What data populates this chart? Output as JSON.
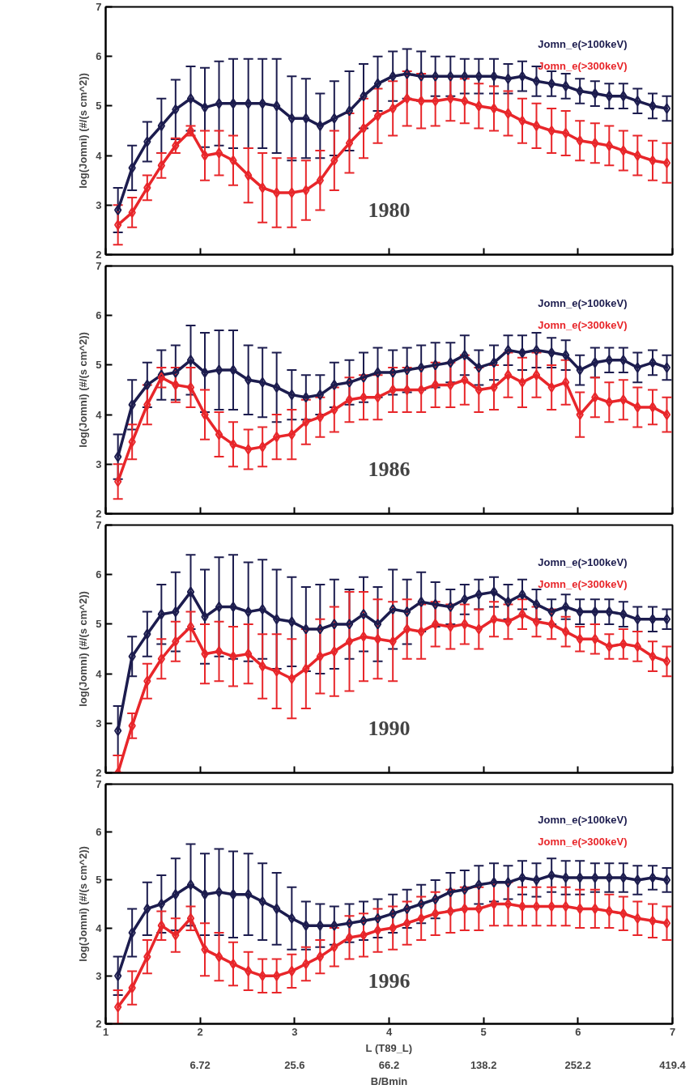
{
  "chart_data": [
    {
      "type": "line",
      "xlim": [
        1,
        7
      ],
      "ylim": [
        2,
        7
      ],
      "xticks": [
        1,
        2,
        3,
        4,
        5,
        6,
        7
      ],
      "yticks": [
        2,
        3,
        4,
        5,
        6,
        7
      ],
      "tick_labels": "y",
      "legend": "top right",
      "marker": "diamond",
      "line_style": "solid",
      "ylabel": "log(Jomni) (#/(s cm^2))",
      "title": "1980",
      "x": [
        1.13,
        1.28,
        1.44,
        1.59,
        1.74,
        1.9,
        2.05,
        2.2,
        2.35,
        2.51,
        2.66,
        2.81,
        2.97,
        3.12,
        3.27,
        3.42,
        3.58,
        3.73,
        3.88,
        4.04,
        4.19,
        4.34,
        4.49,
        4.65,
        4.8,
        4.95,
        5.11,
        5.26,
        5.41,
        5.56,
        5.72,
        5.87,
        6.02,
        6.18,
        6.33,
        6.48,
        6.63,
        6.79,
        6.94
      ],
      "series": [
        {
          "name": "Jomn_e(>100keV)",
          "color": "#1c1c4e",
          "values": [
            2.9,
            3.75,
            4.28,
            4.6,
            4.93,
            5.15,
            4.97,
            5.05,
            5.05,
            5.05,
            5.05,
            5.0,
            4.75,
            4.75,
            4.6,
            4.75,
            4.9,
            5.2,
            5.45,
            5.6,
            5.65,
            5.6,
            5.6,
            5.6,
            5.6,
            5.6,
            5.6,
            5.55,
            5.6,
            5.5,
            5.45,
            5.4,
            5.3,
            5.25,
            5.2,
            5.2,
            5.1,
            5.0,
            4.95
          ],
          "errors": [
            0.45,
            0.45,
            0.4,
            0.55,
            0.6,
            0.65,
            0.8,
            0.85,
            0.9,
            0.9,
            0.9,
            0.95,
            0.85,
            0.8,
            0.65,
            0.75,
            0.8,
            0.65,
            0.55,
            0.5,
            0.5,
            0.5,
            0.4,
            0.4,
            0.35,
            0.35,
            0.35,
            0.3,
            0.3,
            0.3,
            0.25,
            0.25,
            0.25,
            0.25,
            0.25,
            0.25,
            0.25,
            0.25,
            0.25
          ]
        },
        {
          "name": "Jomn_e(>300keV)",
          "color": "#e8262a",
          "values": [
            2.6,
            2.85,
            3.35,
            3.8,
            4.2,
            4.5,
            4.0,
            4.05,
            3.9,
            3.6,
            3.35,
            3.25,
            3.25,
            3.3,
            3.5,
            3.9,
            4.25,
            4.55,
            4.8,
            4.95,
            5.15,
            5.1,
            5.1,
            5.15,
            5.1,
            5.0,
            4.95,
            4.85,
            4.7,
            4.6,
            4.5,
            4.45,
            4.3,
            4.25,
            4.2,
            4.1,
            4.0,
            3.9,
            3.85
          ],
          "errors": [
            0.4,
            0.3,
            0.25,
            0.25,
            0.15,
            0.1,
            0.5,
            0.45,
            0.5,
            0.55,
            0.7,
            0.7,
            0.7,
            0.6,
            0.6,
            0.6,
            0.6,
            0.6,
            0.55,
            0.55,
            0.55,
            0.55,
            0.5,
            0.45,
            0.45,
            0.45,
            0.45,
            0.45,
            0.45,
            0.45,
            0.45,
            0.45,
            0.4,
            0.4,
            0.4,
            0.4,
            0.4,
            0.4,
            0.4
          ]
        }
      ]
    },
    {
      "type": "line",
      "xlim": [
        1,
        7
      ],
      "ylim": [
        2,
        7
      ],
      "xticks": [
        1,
        2,
        3,
        4,
        5,
        6,
        7
      ],
      "yticks": [
        2,
        3,
        4,
        5,
        6,
        7
      ],
      "tick_labels": "y",
      "legend": "top right",
      "marker": "diamond",
      "line_style": "solid",
      "ylabel": "log(Jomni) (#/(s cm^2))",
      "title": "1986",
      "x": [
        1.13,
        1.28,
        1.44,
        1.59,
        1.74,
        1.9,
        2.05,
        2.2,
        2.35,
        2.51,
        2.66,
        2.81,
        2.97,
        3.12,
        3.27,
        3.42,
        3.58,
        3.73,
        3.88,
        4.04,
        4.19,
        4.34,
        4.49,
        4.65,
        4.8,
        4.95,
        5.11,
        5.26,
        5.41,
        5.56,
        5.72,
        5.87,
        6.02,
        6.18,
        6.33,
        6.48,
        6.63,
        6.79,
        6.94
      ],
      "series": [
        {
          "name": "Jomn_e(>100keV)",
          "color": "#1c1c4e",
          "values": [
            3.15,
            4.2,
            4.6,
            4.8,
            4.85,
            5.1,
            4.85,
            4.9,
            4.9,
            4.7,
            4.65,
            4.55,
            4.4,
            4.35,
            4.4,
            4.6,
            4.65,
            4.75,
            4.85,
            4.85,
            4.9,
            4.95,
            5.0,
            5.05,
            5.2,
            4.95,
            5.05,
            5.3,
            5.25,
            5.3,
            5.25,
            5.2,
            4.9,
            5.05,
            5.1,
            5.1,
            4.95,
            5.05,
            4.95
          ],
          "errors": [
            0.45,
            0.5,
            0.45,
            0.5,
            0.55,
            0.7,
            0.8,
            0.8,
            0.8,
            0.7,
            0.7,
            0.7,
            0.5,
            0.45,
            0.4,
            0.45,
            0.45,
            0.5,
            0.5,
            0.45,
            0.45,
            0.45,
            0.45,
            0.4,
            0.4,
            0.35,
            0.35,
            0.3,
            0.35,
            0.35,
            0.3,
            0.3,
            0.3,
            0.3,
            0.25,
            0.25,
            0.3,
            0.25,
            0.25
          ]
        },
        {
          "name": "Jomn_e(>300keV)",
          "color": "#e8262a",
          "values": [
            2.65,
            3.45,
            4.2,
            4.75,
            4.6,
            4.55,
            4.0,
            3.6,
            3.4,
            3.3,
            3.35,
            3.55,
            3.6,
            3.85,
            3.95,
            4.1,
            4.3,
            4.35,
            4.35,
            4.5,
            4.5,
            4.5,
            4.6,
            4.6,
            4.7,
            4.5,
            4.55,
            4.8,
            4.65,
            4.8,
            4.55,
            4.65,
            4.0,
            4.35,
            4.25,
            4.3,
            4.15,
            4.15,
            4.0
          ],
          "errors": [
            0.35,
            0.35,
            0.4,
            0.2,
            0.35,
            0.4,
            0.5,
            0.45,
            0.45,
            0.4,
            0.4,
            0.45,
            0.5,
            0.45,
            0.4,
            0.45,
            0.45,
            0.45,
            0.45,
            0.45,
            0.45,
            0.45,
            0.45,
            0.45,
            0.5,
            0.45,
            0.45,
            0.45,
            0.5,
            0.45,
            0.45,
            0.45,
            0.45,
            0.4,
            0.4,
            0.4,
            0.4,
            0.35,
            0.35
          ]
        }
      ]
    },
    {
      "type": "line",
      "xlim": [
        1,
        7
      ],
      "ylim": [
        2,
        7
      ],
      "xticks": [
        1,
        2,
        3,
        4,
        5,
        6,
        7
      ],
      "yticks": [
        2,
        3,
        4,
        5,
        6,
        7
      ],
      "tick_labels": "y",
      "legend": "top right",
      "marker": "diamond",
      "line_style": "solid",
      "ylabel": "log(Jomni) (#/(s cm^2))",
      "title": "1990",
      "x": [
        1.13,
        1.28,
        1.44,
        1.59,
        1.74,
        1.9,
        2.05,
        2.2,
        2.35,
        2.51,
        2.66,
        2.81,
        2.97,
        3.12,
        3.27,
        3.42,
        3.58,
        3.73,
        3.88,
        4.04,
        4.19,
        4.34,
        4.49,
        4.65,
        4.8,
        4.95,
        5.11,
        5.26,
        5.41,
        5.56,
        5.72,
        5.87,
        6.02,
        6.18,
        6.33,
        6.48,
        6.63,
        6.79,
        6.94
      ],
      "series": [
        {
          "name": "Jomn_e(>100keV)",
          "color": "#1c1c4e",
          "values": [
            2.85,
            4.35,
            4.8,
            5.2,
            5.25,
            5.65,
            5.15,
            5.35,
            5.35,
            5.25,
            5.3,
            5.1,
            5.05,
            4.9,
            4.9,
            5.0,
            5.0,
            5.2,
            5.0,
            5.3,
            5.25,
            5.45,
            5.4,
            5.35,
            5.5,
            5.6,
            5.65,
            5.45,
            5.6,
            5.4,
            5.25,
            5.35,
            5.25,
            5.25,
            5.25,
            5.2,
            5.1,
            5.1,
            5.1
          ],
          "errors": [
            0.5,
            0.4,
            0.45,
            0.6,
            0.8,
            0.75,
            0.95,
            1.0,
            1.05,
            1.0,
            1.0,
            1.0,
            0.9,
            0.85,
            0.9,
            0.9,
            0.7,
            0.75,
            0.75,
            0.8,
            0.65,
            0.6,
            0.45,
            0.35,
            0.3,
            0.3,
            0.3,
            0.35,
            0.3,
            0.3,
            0.25,
            0.25,
            0.25,
            0.25,
            0.25,
            0.25,
            0.25,
            0.25,
            0.2
          ]
        },
        {
          "name": "Jomn_e(>300keV)",
          "color": "#e8262a",
          "values": [
            2.0,
            2.95,
            3.85,
            4.3,
            4.65,
            4.95,
            4.4,
            4.45,
            4.35,
            4.4,
            4.15,
            4.05,
            3.9,
            4.1,
            4.35,
            4.45,
            4.65,
            4.75,
            4.7,
            4.65,
            4.9,
            4.85,
            5.0,
            4.95,
            5.0,
            4.9,
            5.1,
            5.05,
            5.2,
            5.05,
            5.0,
            4.85,
            4.7,
            4.7,
            4.55,
            4.6,
            4.55,
            4.35,
            4.25
          ],
          "errors": [
            [
              2.0,
              2.35
            ],
            0.25,
            0.35,
            0.4,
            0.4,
            0.3,
            0.6,
            0.6,
            0.6,
            0.6,
            0.65,
            0.75,
            0.8,
            0.8,
            0.75,
            0.9,
            1.0,
            0.9,
            0.8,
            0.8,
            0.6,
            0.55,
            0.45,
            0.45,
            0.4,
            0.4,
            0.35,
            0.35,
            0.3,
            0.3,
            0.3,
            0.3,
            0.25,
            0.3,
            0.25,
            0.3,
            0.3,
            0.3,
            0.3
          ]
        }
      ]
    },
    {
      "type": "line",
      "xlim": [
        1,
        7
      ],
      "ylim": [
        2,
        7
      ],
      "xticks": [
        1,
        2,
        3,
        4,
        5,
        6,
        7
      ],
      "yticks": [
        2,
        3,
        4,
        5,
        6,
        7
      ],
      "legend": "top right",
      "marker": "diamond",
      "line_style": "solid",
      "xlabel": "L (T89_L)",
      "ylabel": "log(Jomni) (#/(s cm^2))",
      "title": "1996",
      "annotations": [
        "B/Bmin",
        "6.72",
        "25.6",
        "66.2",
        "138.2",
        "252.2",
        "419.4"
      ],
      "x": [
        1.13,
        1.28,
        1.44,
        1.59,
        1.74,
        1.9,
        2.05,
        2.2,
        2.35,
        2.51,
        2.66,
        2.81,
        2.97,
        3.12,
        3.27,
        3.42,
        3.58,
        3.73,
        3.88,
        4.04,
        4.19,
        4.34,
        4.49,
        4.65,
        4.8,
        4.95,
        5.11,
        5.26,
        5.41,
        5.56,
        5.72,
        5.87,
        6.02,
        6.18,
        6.33,
        6.48,
        6.63,
        6.79,
        6.94
      ],
      "series": [
        {
          "name": "Jomn_e(>100keV)",
          "color": "#1c1c4e",
          "values": [
            3.0,
            3.9,
            4.4,
            4.5,
            4.7,
            4.9,
            4.7,
            4.75,
            4.7,
            4.7,
            4.55,
            4.4,
            4.2,
            4.05,
            4.05,
            4.05,
            4.1,
            4.15,
            4.2,
            4.3,
            4.4,
            4.5,
            4.6,
            4.75,
            4.8,
            4.9,
            4.95,
            4.95,
            5.05,
            5.0,
            5.1,
            5.05,
            5.05,
            5.05,
            5.05,
            5.05,
            5.0,
            5.05,
            5.0
          ],
          "errors": [
            0.4,
            0.5,
            0.55,
            0.6,
            0.75,
            0.85,
            0.85,
            0.9,
            0.9,
            0.85,
            0.8,
            0.75,
            0.65,
            0.5,
            0.45,
            0.4,
            0.4,
            0.4,
            0.4,
            0.4,
            0.4,
            0.4,
            0.4,
            0.4,
            0.4,
            0.4,
            0.4,
            0.35,
            0.35,
            0.35,
            0.35,
            0.35,
            0.35,
            0.3,
            0.3,
            0.3,
            0.3,
            0.25,
            0.25
          ]
        },
        {
          "name": "Jomn_e(>300keV)",
          "color": "#e8262a",
          "values": [
            2.35,
            2.75,
            3.4,
            4.05,
            3.85,
            4.2,
            3.55,
            3.4,
            3.25,
            3.1,
            3.0,
            3.0,
            3.1,
            3.25,
            3.4,
            3.6,
            3.8,
            3.85,
            3.95,
            4.0,
            4.1,
            4.2,
            4.3,
            4.35,
            4.4,
            4.4,
            4.5,
            4.5,
            4.45,
            4.45,
            4.45,
            4.45,
            4.4,
            4.4,
            4.35,
            4.3,
            4.2,
            4.15,
            4.1
          ],
          "errors": [
            0.35,
            0.35,
            0.35,
            0.3,
            0.35,
            0.25,
            0.55,
            0.5,
            0.45,
            0.4,
            0.35,
            0.35,
            0.35,
            0.35,
            0.35,
            0.4,
            0.45,
            0.45,
            0.45,
            0.45,
            0.45,
            0.45,
            0.45,
            0.45,
            0.45,
            0.45,
            0.45,
            0.45,
            0.4,
            0.4,
            0.4,
            0.4,
            0.4,
            0.4,
            0.35,
            0.35,
            0.35,
            0.35,
            0.35
          ]
        }
      ]
    }
  ]
}
